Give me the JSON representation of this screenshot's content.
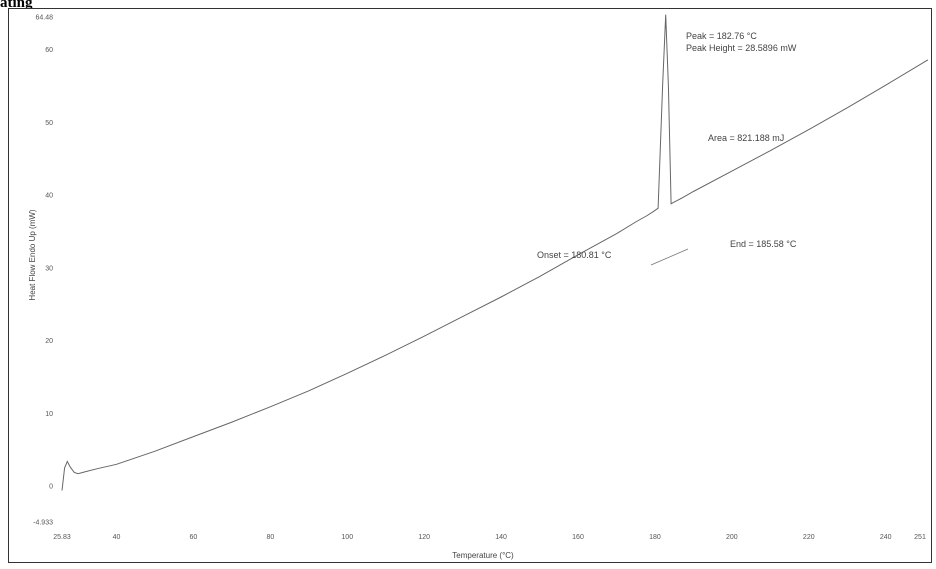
{
  "header": {
    "text": "ating"
  },
  "chart_data": {
    "type": "line",
    "xlabel": "Temperature (°C)",
    "ylabel": "Heat Flow Endo Up (mW)",
    "xlim": [
      25.83,
      251
    ],
    "ylim": [
      -4.933,
      64.48
    ],
    "x_ticks": [
      "25.83",
      "40",
      "60",
      "80",
      "100",
      "120",
      "140",
      "160",
      "180",
      "200",
      "220",
      "240",
      "251"
    ],
    "y_ticks": [
      "64.48",
      "60",
      "50",
      "40",
      "30",
      "20",
      "10",
      "0",
      "-4.933"
    ],
    "series": [
      {
        "x": [
          25.83,
          26.5,
          27.2,
          28,
          29,
          30,
          32,
          35,
          40,
          50,
          60,
          70,
          80,
          90,
          100,
          110,
          120,
          130,
          140,
          150,
          160,
          170,
          175,
          178,
          179.5,
          180.81,
          182,
          182.8,
          183.5,
          184.2,
          184.8,
          185.58,
          187,
          190,
          200,
          210,
          220,
          230,
          240,
          251
        ],
        "y": [
          -0.6,
          2.5,
          3.4,
          2.6,
          1.9,
          1.7,
          2.0,
          2.4,
          3.0,
          4.8,
          6.8,
          8.8,
          10.9,
          13.1,
          15.5,
          18.0,
          20.6,
          23.3,
          26.0,
          28.8,
          31.8,
          34.7,
          36.3,
          37.2,
          37.7,
          38.2,
          55.0,
          64.8,
          55.0,
          38.8,
          39.0,
          39.2,
          39.6,
          40.5,
          43.3,
          46.1,
          49.0,
          52.0,
          55.1,
          58.6
        ]
      }
    ],
    "annotations": {
      "peak": "Peak = 182.76 °C",
      "peak_height": "Peak Height = 28.5896 mW",
      "area": "Area = 821.188 mJ",
      "onset": "Onset = 180.81 °C",
      "end": "End = 185.58 °C"
    }
  }
}
